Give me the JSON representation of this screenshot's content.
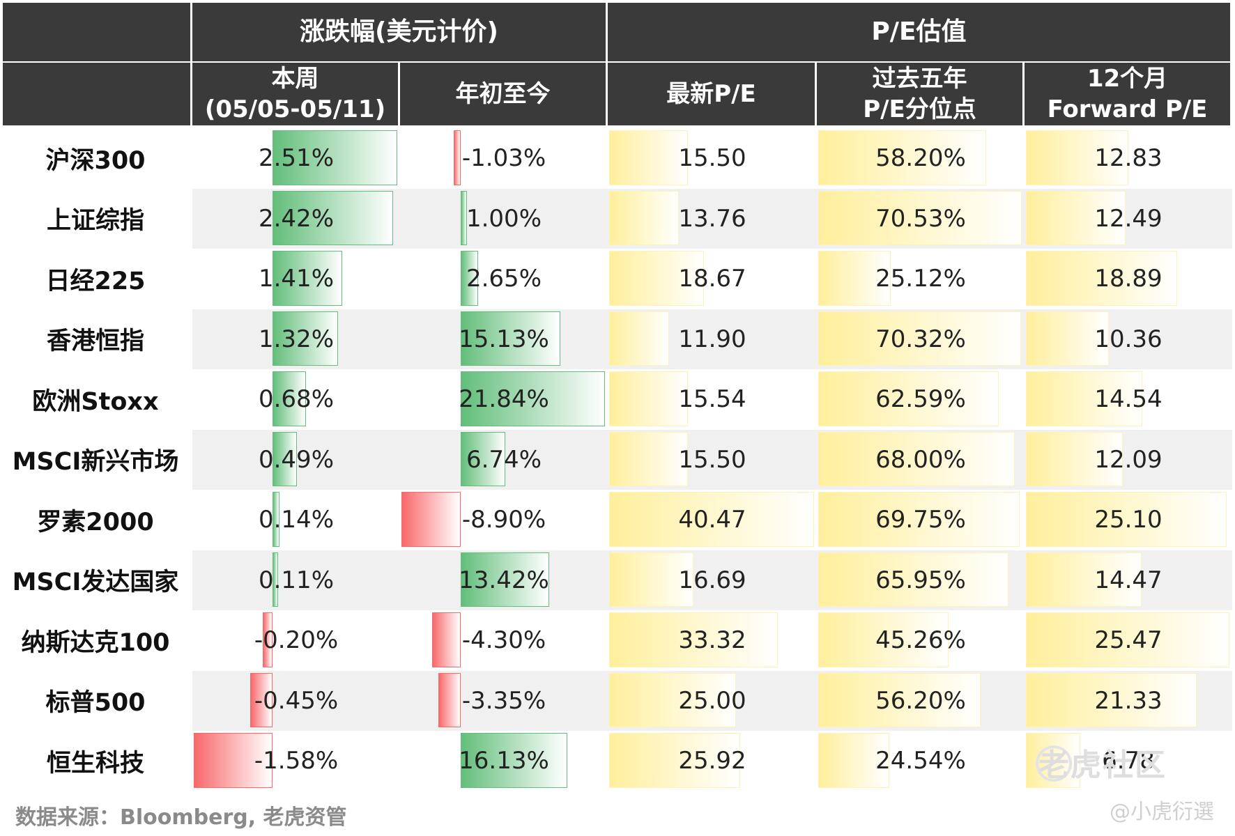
{
  "table": {
    "group_headers": [
      "",
      "涨跌幅(美元计价)",
      "P/E估值"
    ],
    "column_headers": [
      [
        ""
      ],
      [
        "本周",
        "(05/05-05/11)"
      ],
      [
        "年初至今"
      ],
      [
        "最新P/E"
      ],
      [
        "过去五年",
        "P/E分位点"
      ],
      [
        "12个月",
        "Forward P/E"
      ]
    ],
    "rows": [
      {
        "name": "沪深300",
        "week": "2.51%",
        "ytd": "-1.03%",
        "pe": "15.50",
        "pct": "58.20%",
        "fpe": "12.83"
      },
      {
        "name": "上证综指",
        "week": "2.42%",
        "ytd": "1.00%",
        "pe": "13.76",
        "pct": "70.53%",
        "fpe": "12.49"
      },
      {
        "name": "日经225",
        "week": "1.41%",
        "ytd": "2.65%",
        "pe": "18.67",
        "pct": "25.12%",
        "fpe": "18.89"
      },
      {
        "name": "香港恒指",
        "week": "1.32%",
        "ytd": "15.13%",
        "pe": "11.90",
        "pct": "70.32%",
        "fpe": "10.36"
      },
      {
        "name": "欧洲Stoxx",
        "week": "0.68%",
        "ytd": "21.84%",
        "pe": "15.54",
        "pct": "62.59%",
        "fpe": "14.54"
      },
      {
        "name": "MSCI新兴市场",
        "week": "0.49%",
        "ytd": "6.74%",
        "pe": "15.50",
        "pct": "68.00%",
        "fpe": "12.09"
      },
      {
        "name": "罗素2000",
        "week": "0.14%",
        "ytd": "-8.90%",
        "pe": "40.47",
        "pct": "69.75%",
        "fpe": "25.10"
      },
      {
        "name": "MSCI发达国家",
        "week": "0.11%",
        "ytd": "13.42%",
        "pe": "16.69",
        "pct": "65.95%",
        "fpe": "14.47"
      },
      {
        "name": "纳斯达克100",
        "week": "-0.20%",
        "ytd": "-4.30%",
        "pe": "33.32",
        "pct": "45.26%",
        "fpe": "25.47"
      },
      {
        "name": "标普500",
        "week": "-0.45%",
        "ytd": "-3.35%",
        "pe": "25.00",
        "pct": "56.20%",
        "fpe": "21.33"
      },
      {
        "name": "恒生科技",
        "week": "-1.58%",
        "ytd": "16.13%",
        "pe": "25.92",
        "pct": "24.54%",
        "fpe": "6.78"
      }
    ]
  },
  "chart_data": {
    "type": "table",
    "categories": [
      "沪深300",
      "上证综指",
      "日经225",
      "香港恒指",
      "欧洲Stoxx",
      "MSCI新兴市场",
      "罗素2000",
      "MSCI发达国家",
      "纳斯达克100",
      "标普500",
      "恒生科技"
    ],
    "series": [
      {
        "name": "本周",
        "values": [
          2.51,
          2.42,
          1.41,
          1.32,
          0.68,
          0.49,
          0.14,
          0.11,
          -0.2,
          -0.45,
          -1.58
        ]
      },
      {
        "name": "年初至今",
        "values": [
          -1.03,
          1.0,
          2.65,
          15.13,
          21.84,
          6.74,
          -8.9,
          13.42,
          -4.3,
          -3.35,
          16.13
        ]
      },
      {
        "name": "最新P/E",
        "values": [
          15.5,
          13.76,
          18.67,
          11.9,
          15.54,
          15.5,
          40.47,
          16.69,
          33.32,
          25.0,
          25.92
        ]
      },
      {
        "name": "过去五年P/E分位点",
        "values": [
          58.2,
          70.53,
          25.12,
          70.32,
          62.59,
          68.0,
          69.75,
          65.95,
          45.26,
          56.2,
          24.54
        ]
      },
      {
        "name": "12个月Forward P/E",
        "values": [
          12.83,
          12.49,
          18.89,
          10.36,
          14.54,
          12.09,
          25.1,
          14.47,
          25.47,
          21.33,
          6.78
        ]
      }
    ]
  },
  "colors": {
    "header_bg": "#3a3a3a",
    "positive": "#63be7b",
    "negative": "#f8696b",
    "neutral": "#ffef9c",
    "stripe": "#f0f0f0"
  },
  "footer": {
    "source": "数据来源：Bloomberg, 老虎资管",
    "watermark": "老虎社区",
    "credit": "@小虎衍選"
  }
}
